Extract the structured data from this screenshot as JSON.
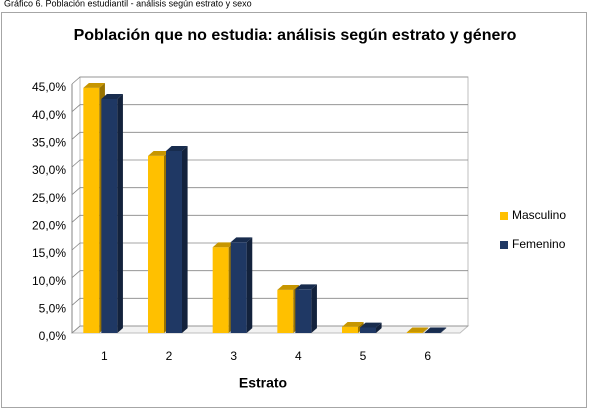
{
  "caption": "Gráfico 6.  Población estudiantil - análisis según estrato y sexo",
  "chart_data": {
    "type": "bar3d",
    "title": "Población que no estudia: análisis según estrato y género",
    "x_label": "Estrato",
    "categories": [
      "1",
      "2",
      "3",
      "4",
      "5",
      "6"
    ],
    "series": [
      {
        "name": "Masculino",
        "color": "#FFC000",
        "values": [
          44.3,
          32.0,
          15.5,
          7.8,
          1.1,
          0.1
        ]
      },
      {
        "name": "Femenino",
        "color": "#1F3864",
        "values": [
          42.3,
          32.9,
          16.4,
          7.9,
          1.0,
          0.1
        ]
      }
    ],
    "ylim": [
      0,
      45
    ],
    "yticks": [
      {
        "value": 0,
        "label": "0,0%"
      },
      {
        "value": 5,
        "label": "5,0%"
      },
      {
        "value": 10,
        "label": "10,0%"
      },
      {
        "value": 15,
        "label": "15,0%"
      },
      {
        "value": 20,
        "label": "20,0%"
      },
      {
        "value": 25,
        "label": "25,0%"
      },
      {
        "value": 30,
        "label": "30,0%"
      },
      {
        "value": 35,
        "label": "35,0%"
      },
      {
        "value": 40,
        "label": "40,0%"
      },
      {
        "value": 45,
        "label": "45,0%"
      }
    ],
    "grid": true,
    "legend": "right"
  }
}
